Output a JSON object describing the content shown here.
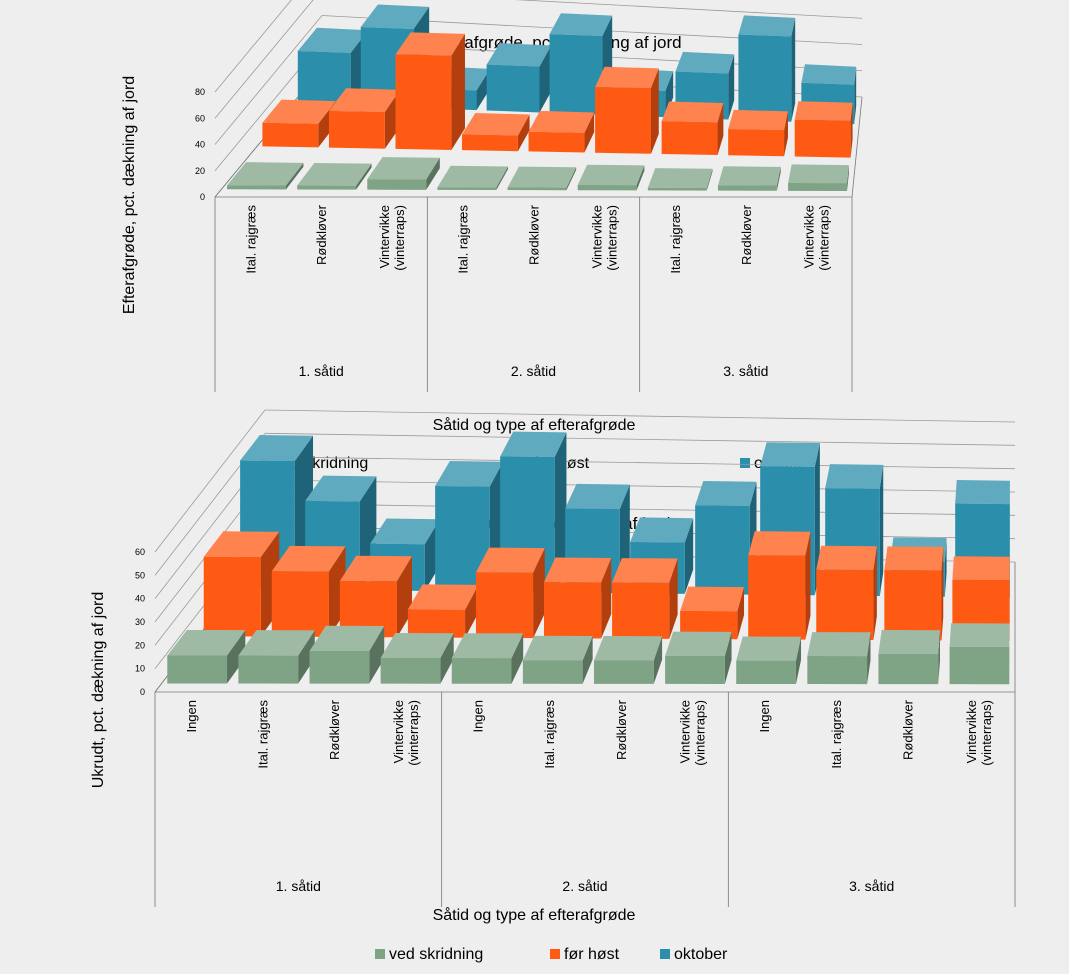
{
  "colors": {
    "background": "#eeeeee",
    "ved_skridning": "#7fa385",
    "for_host": "#ff5a14",
    "oktober": "#2b8eaa"
  },
  "chart_data": [
    {
      "type": "bar",
      "title": "Efterafgrøde, pct. dækning af jord",
      "ylabel": "Efterafgrøde, pct. dækning af jord",
      "xlabel": "Såtid og type af efterafgrøde",
      "ylim": [
        0,
        80
      ],
      "yticks": [
        0,
        20,
        40,
        60,
        80
      ],
      "grid": true,
      "legend_position": "bottom",
      "groups": [
        {
          "name": "1. såtid",
          "categories": [
            "Ital. rajgræs",
            "Rødkløver",
            "Vintervikke (vinterraps)"
          ]
        },
        {
          "name": "2. såtid",
          "categories": [
            "Ital. rajgræs",
            "Rødkløver",
            "Vintervikke (vinterraps)"
          ]
        },
        {
          "name": "3. såtid",
          "categories": [
            "Ital. rajgræs",
            "Rødkløver",
            "Vintervikke (vinterraps)"
          ]
        }
      ],
      "series": [
        {
          "name": "ved skridning",
          "color": "#7fa385",
          "values": [
            3,
            3,
            8,
            2,
            2,
            4,
            2,
            4,
            6
          ]
        },
        {
          "name": "før høst",
          "color": "#ff5a14",
          "values": [
            18,
            28,
            72,
            12,
            15,
            50,
            25,
            20,
            28
          ]
        },
        {
          "name": "oktober",
          "color": "#2b8eaa",
          "values": [
            40,
            60,
            15,
            35,
            60,
            20,
            35,
            65,
            30
          ]
        }
      ]
    },
    {
      "type": "bar",
      "title": "Ukrudt, pct. dækning af jord",
      "ylabel": "Ukrudt, pct. dækning af jord",
      "xlabel": "Såtid og type af efterafgrøde",
      "ylim": [
        0,
        60
      ],
      "yticks": [
        0,
        10,
        20,
        30,
        40,
        50,
        60
      ],
      "grid": true,
      "legend_position": "bottom",
      "groups": [
        {
          "name": "1. såtid",
          "categories": [
            "Ingen",
            "Ital. rajgræs",
            "Rødkløver",
            "Vintervikke (vinterraps)"
          ]
        },
        {
          "name": "2. såtid",
          "categories": [
            "Ingen",
            "Ital. rajgræs",
            "Rødkløver",
            "Vintervikke (vinterraps)"
          ]
        },
        {
          "name": "3. såtid",
          "categories": [
            "Ingen",
            "Ital. rajgræs",
            "Rødkløver",
            "Vintervikke (vinterraps)"
          ]
        }
      ],
      "series": [
        {
          "name": "ved skridning",
          "color": "#7fa385",
          "values": [
            12,
            12,
            14,
            11,
            11,
            10,
            10,
            12,
            10,
            12,
            13,
            16
          ]
        },
        {
          "name": "før høst",
          "color": "#ff5a14",
          "values": [
            34,
            28,
            24,
            12,
            28,
            24,
            24,
            12,
            36,
            30,
            30,
            26
          ]
        },
        {
          "name": "oktober",
          "color": "#2b8eaa",
          "values": [
            55,
            38,
            20,
            45,
            58,
            36,
            22,
            38,
            55,
            46,
            15,
            40
          ]
        }
      ]
    }
  ]
}
